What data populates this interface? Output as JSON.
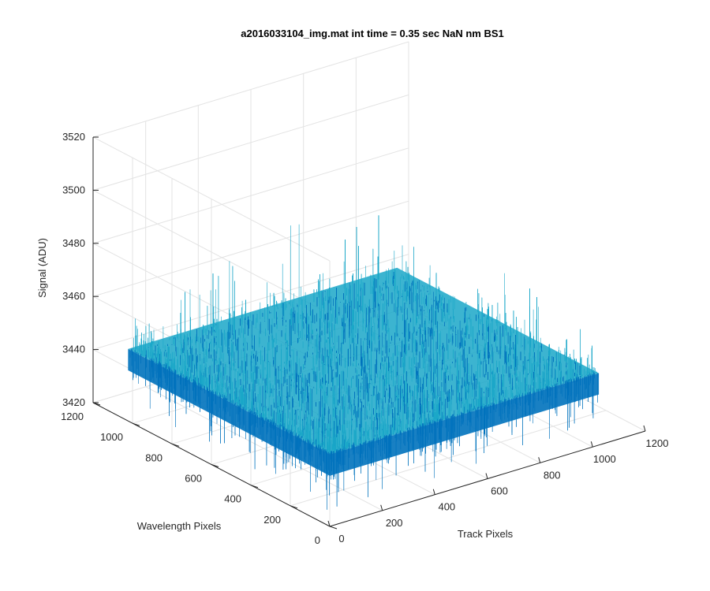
{
  "chart_data": {
    "type": "surface",
    "title": "a2016033104_img.mat int time = 0.35 sec  NaN nm BS1",
    "xlabel": "Track Pixels",
    "ylabel": "Wavelength Pixels",
    "zlabel": "Signal (ADU)",
    "xlim": [
      0,
      1200
    ],
    "ylim": [
      0,
      1200
    ],
    "zlim": [
      3420,
      3520
    ],
    "x_ticks": [
      "0",
      "200",
      "400",
      "600",
      "800",
      "1000",
      "1200"
    ],
    "y_ticks": [
      "0",
      "200",
      "400",
      "600",
      "800",
      "1000",
      "1200"
    ],
    "z_ticks": [
      "3420",
      "3440",
      "3460",
      "3480",
      "3500",
      "3520"
    ],
    "data_extent": {
      "x": [
        1,
        1024
      ],
      "y": [
        1,
        1024
      ]
    },
    "signal_mean": 3447,
    "signal_noise_range": [
      3425,
      3500
    ],
    "colormap": "parula",
    "grid": true,
    "colors": {
      "low": "#0072BD",
      "mid": "#1AA7C8",
      "high": "#C9D24F"
    }
  }
}
